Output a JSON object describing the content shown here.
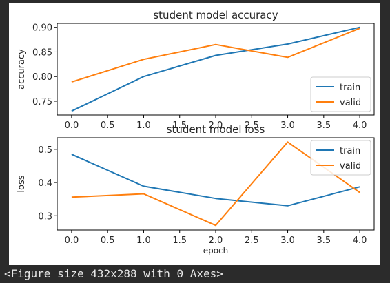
{
  "output_text": "<Figure size 432x288 with 0 Axes>",
  "colors": {
    "train": "#1f77b4",
    "valid": "#ff7f0e",
    "page_bg": "#2b2b2b",
    "figure_bg": "#ffffff"
  },
  "chart_data": [
    {
      "type": "line",
      "title": "student model accuracy",
      "xlabel": "",
      "ylabel": "accuracy",
      "x": [
        0,
        1,
        2,
        3,
        4
      ],
      "xticks": [
        "0.0",
        "0.5",
        "1.0",
        "1.5",
        "2.0",
        "2.5",
        "3.0",
        "3.5",
        "4.0"
      ],
      "xtick_values": [
        0,
        0.5,
        1,
        1.5,
        2,
        2.5,
        3,
        3.5,
        4
      ],
      "yticks": [
        "0.75",
        "0.80",
        "0.85",
        "0.90"
      ],
      "ytick_values": [
        0.75,
        0.8,
        0.85,
        0.9
      ],
      "xlim": [
        -0.2,
        4.2
      ],
      "ylim": [
        0.722,
        0.908
      ],
      "grid": false,
      "legend_position": "lower right",
      "series": [
        {
          "name": "train",
          "color_key": "train",
          "values": [
            0.73,
            0.8,
            0.843,
            0.866,
            0.9
          ]
        },
        {
          "name": "valid",
          "color_key": "valid",
          "values": [
            0.789,
            0.835,
            0.865,
            0.839,
            0.898
          ]
        }
      ]
    },
    {
      "type": "line",
      "title": "student model loss",
      "xlabel": "epoch",
      "ylabel": "loss",
      "x": [
        0,
        1,
        2,
        3,
        4
      ],
      "xticks": [
        "0.0",
        "0.5",
        "1.0",
        "1.5",
        "2.0",
        "2.5",
        "3.0",
        "3.5",
        "4.0"
      ],
      "xtick_values": [
        0,
        0.5,
        1,
        1.5,
        2,
        2.5,
        3,
        3.5,
        4
      ],
      "yticks": [
        "0.3",
        "0.4",
        "0.5"
      ],
      "ytick_values": [
        0.3,
        0.4,
        0.5
      ],
      "xlim": [
        -0.2,
        4.2
      ],
      "ylim": [
        0.257,
        0.535
      ],
      "grid": false,
      "legend_position": "upper right",
      "series": [
        {
          "name": "train",
          "color_key": "train",
          "values": [
            0.485,
            0.389,
            0.352,
            0.33,
            0.387
          ]
        },
        {
          "name": "valid",
          "color_key": "valid",
          "values": [
            0.356,
            0.366,
            0.271,
            0.522,
            0.37
          ]
        }
      ]
    }
  ]
}
